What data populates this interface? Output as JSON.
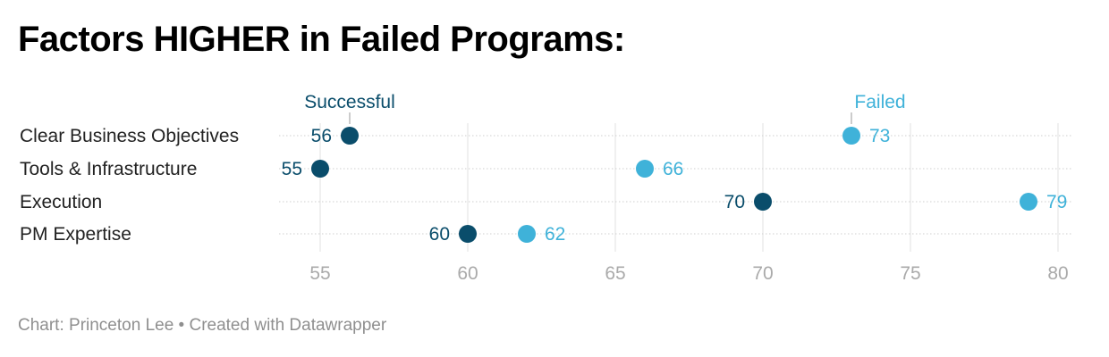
{
  "title": "Factors HIGHER in Failed Programs:",
  "footer": "Chart: Princeton Lee • Created with Datawrapper",
  "colors": {
    "successful": "#0a4d6b",
    "failed": "#3fb2d9",
    "grid": "#e2e2e2",
    "tick_label": "#aaaaaa",
    "row_label": "#222222"
  },
  "chart_data": {
    "type": "range_dot",
    "legend": {
      "start_label": "Successful",
      "end_label": "Failed"
    },
    "categories": [
      "Clear Business Objectives",
      "Tools & Infrastructure",
      "Execution",
      "PM Expertise"
    ],
    "series": [
      {
        "name": "Successful",
        "values": [
          56,
          55,
          70,
          60
        ]
      },
      {
        "name": "Failed",
        "values": [
          73,
          66,
          79,
          62
        ]
      }
    ],
    "x_ticks": [
      55,
      60,
      65,
      70,
      75,
      80
    ],
    "xlim": [
      55,
      80
    ],
    "grid": true
  }
}
